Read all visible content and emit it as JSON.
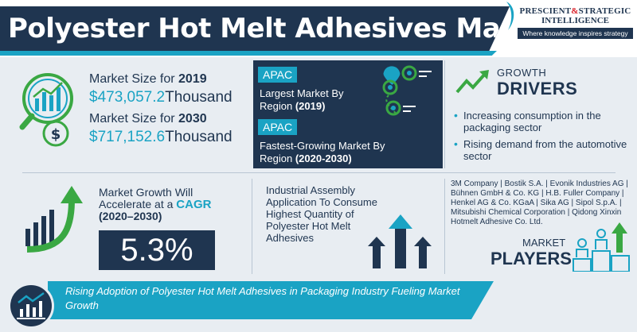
{
  "header": {
    "title": "Polyester Hot Melt Adhesives Market",
    "logo_line1": "PRESCIENT",
    "logo_amp": "&",
    "logo_line1b": "STRATEGIC",
    "logo_line2": "INTELLIGENCE",
    "logo_tagline": "Where knowledge inspires strategy"
  },
  "market_size": {
    "label_2019_prefix": "Market Size for ",
    "year_2019": "2019",
    "value_2019": "$473,057.2",
    "unit_2019": "Thousand",
    "label_2030_prefix": "Market Size for ",
    "year_2030": "2030",
    "value_2030": "$717,152.6",
    "unit_2030": "Thousand"
  },
  "apac": {
    "chip1": "APAC",
    "desc1": "Largest Market By Region",
    "desc1_year": "(2019)",
    "chip2": "APAC",
    "desc2": "Fastest-Growing Market By Region",
    "desc2_year": "(2020-2030)"
  },
  "growth_drivers": {
    "title_line1": "GROWTH",
    "title_line2": "DRIVERS",
    "items": [
      "Increasing consumption in the packaging sector",
      "Rising demand from the automotive sector"
    ]
  },
  "cagr": {
    "text": "Market Growth Will Accelerate at a",
    "hl": "CAGR",
    "period": "(2020–2030)",
    "value": "5.3%"
  },
  "industrial": {
    "text": "Industrial Assembly Application To Consume Highest Quantity of Polyester Hot Melt Adhesives"
  },
  "players": {
    "list": "3M Company | Bostik S.A. | Evonik Industries AG | Bühnen GmbH & Co. KG | H.B. Fuller Company | Henkel AG & Co. KGaA | Sika AG | Sipol S.p.A. | Mitsubishi Chemical Corporation | Qidong Xinxin Hotmelt Adhesive Co. Ltd.",
    "title_line1": "MARKET",
    "title_line2": "PLAYERS"
  },
  "footer": {
    "text": "Rising Adoption of Polyester Hot Melt Adhesives in Packaging Industry Fueling Market Growth"
  },
  "colors": {
    "navy": "#1f3550",
    "teal": "#1aa3c4",
    "green": "#3aa843",
    "red": "#d9222a"
  },
  "icons": [
    "magnifier-chart-icon",
    "dollar-icon",
    "map-pin-icon",
    "growth-arrow-icon",
    "bar-growth-icon",
    "arrows-up-icon",
    "people-podium-icon",
    "line-chart-icon"
  ]
}
